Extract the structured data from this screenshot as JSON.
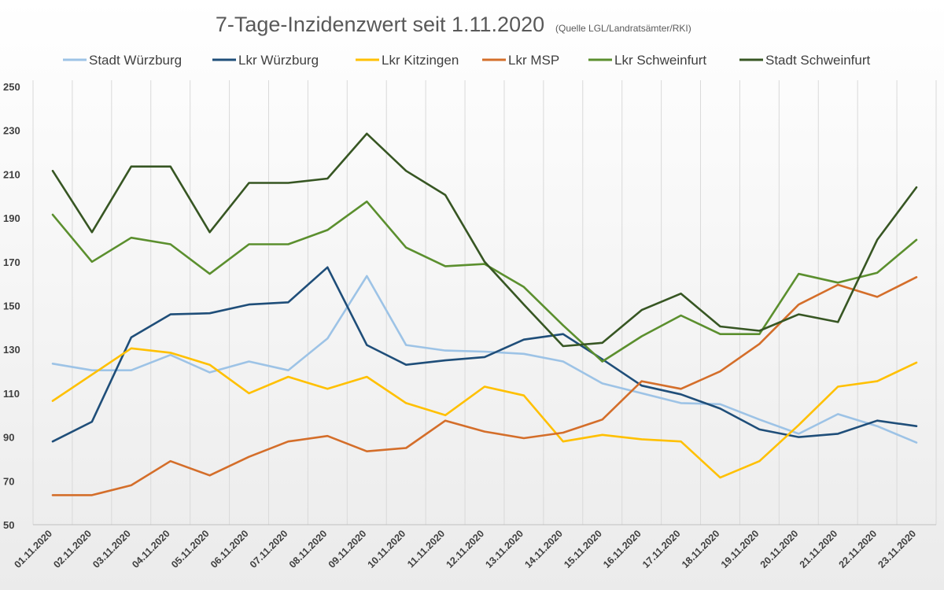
{
  "chart_data": {
    "type": "line",
    "title": "7-Tage-Inzidenzwert seit 1.11.2020",
    "subtitle": "(Quelle LGL/Landratsämter/RKI)",
    "xlabel": "",
    "ylabel": "",
    "ylim": [
      50,
      250
    ],
    "yticks": [
      "250",
      "230",
      "210",
      "190",
      "170",
      "150",
      "130",
      "110",
      "90",
      "70",
      "50"
    ],
    "grid": "vertical",
    "legend": "top",
    "categories": [
      "01.11.2020",
      "02.11.2020",
      "03.11.2020",
      "04.11.2020",
      "05.11.2020",
      "06.11.2020",
      "07.11.2020",
      "08.11.2020",
      "09.11.2020",
      "10.11.2020",
      "11.11.2020",
      "12.11.2020",
      "13.11.2020",
      "14.11.2020",
      "15.11.2020",
      "16.11.2020",
      "17.11.2020",
      "18.11.2020",
      "19.11.2020",
      "20.11.2020",
      "21.11.2020",
      "22.11.2020",
      "23.11.2020"
    ],
    "series": [
      {
        "name": "Stadt Würzburg",
        "color": "#9DC3E6",
        "values": [
          123.5,
          120.5,
          120.5,
          127.5,
          119.5,
          124.5,
          120.5,
          135,
          163.5,
          132,
          129.5,
          129,
          128,
          124.5,
          114.5,
          110,
          105.5,
          105,
          98,
          91.5,
          100.5,
          95,
          87.5
        ]
      },
      {
        "name": "Lkr Würzburg",
        "color": "#1F4E79",
        "values": [
          88,
          97,
          135.5,
          146,
          146.5,
          150.5,
          151.5,
          167.5,
          132,
          123,
          125,
          126.5,
          134.5,
          137,
          125.5,
          113.5,
          109.5,
          103,
          93.5,
          90,
          91.5,
          97.5,
          95
        ]
      },
      {
        "name": "Lkr Kitzingen",
        "color": "#FFC000",
        "values": [
          106.5,
          118.5,
          130.5,
          128.5,
          123,
          110,
          117.5,
          112,
          117.5,
          105.5,
          100,
          113,
          109,
          88,
          91,
          89,
          88,
          71.5,
          79,
          95.5,
          113,
          115.5,
          124
        ]
      },
      {
        "name": "Lkr MSP",
        "color": "#D46E2A",
        "values": [
          63.5,
          63.5,
          68,
          79,
          72.5,
          81,
          88,
          90.5,
          83.5,
          85,
          97.5,
          92.5,
          89.5,
          92,
          98,
          115.5,
          112,
          120,
          132.5,
          150.5,
          159.5,
          154,
          163
        ]
      },
      {
        "name": "Lkr Schweinfurt",
        "color": "#5B8F2E",
        "values": [
          191.5,
          170,
          181,
          178,
          164.5,
          178,
          178,
          184.5,
          197.5,
          176.5,
          168,
          169,
          158.5,
          141,
          124.5,
          136,
          145.5,
          137,
          137,
          164.5,
          160.5,
          165,
          180
        ]
      },
      {
        "name": "Stadt Schweinfurt",
        "color": "#375623",
        "values": [
          211.5,
          183.5,
          213.5,
          213.5,
          183.5,
          206,
          206,
          208,
          228.5,
          211.5,
          200.5,
          170,
          150.5,
          131.5,
          133,
          148,
          155.5,
          140.5,
          138.5,
          146,
          142.5,
          180,
          204
        ]
      }
    ]
  }
}
